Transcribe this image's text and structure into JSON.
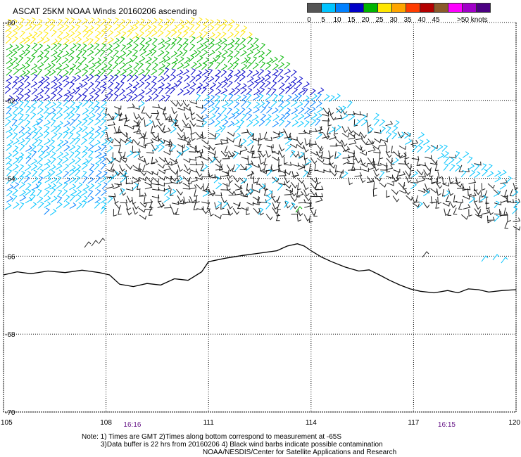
{
  "title": "ASCAT 25KM NOAA Winds 20160206 ascending",
  "legend": {
    "colors": [
      "#555555",
      "#00c4ff",
      "#0080ff",
      "#0000c8",
      "#00b400",
      "#ffe600",
      "#ffa500",
      "#ff3c00",
      "#b40000",
      "#8b5a2b",
      "#ff00ff",
      "#a000c8",
      "#4b0082"
    ],
    "labels": [
      {
        "text": "0",
        "after": 0
      },
      {
        "text": "5",
        "after": 1
      },
      {
        "text": "10",
        "after": 2
      },
      {
        "text": "15",
        "after": 3
      },
      {
        "text": "20",
        "after": 4
      },
      {
        "text": "25",
        "after": 5
      },
      {
        "text": "30",
        "after": 6
      },
      {
        "text": "35",
        "after": 7
      },
      {
        "text": "40",
        "after": 8
      },
      {
        "text": "45",
        "after": 9
      },
      {
        "text": ">50 knots",
        "after": 11
      }
    ]
  },
  "axes": {
    "lon_min": 105,
    "lon_max": 120,
    "lat_min": -70,
    "lat_max": -60,
    "lon_ticks": [
      {
        "value": 105,
        "label": "105"
      },
      {
        "value": 108,
        "label": "108"
      },
      {
        "value": 111,
        "label": "111"
      },
      {
        "value": 114,
        "label": "114"
      },
      {
        "value": 117,
        "label": "117"
      },
      {
        "value": 120,
        "label": "120"
      }
    ],
    "lat_ticks": [
      {
        "value": -60,
        "label": "-60"
      },
      {
        "value": -62,
        "label": "-62"
      },
      {
        "value": -64,
        "label": "-64"
      },
      {
        "value": -66,
        "label": "-66"
      },
      {
        "value": -68,
        "label": "-68"
      },
      {
        "value": -70,
        "label": "-70"
      }
    ]
  },
  "times": [
    {
      "label": "16:16",
      "lon": 108.8
    },
    {
      "label": "16:15",
      "lon": 118.0
    }
  ],
  "coastline": [
    [
      105.0,
      -66.48
    ],
    [
      105.4,
      -66.4
    ],
    [
      105.8,
      -66.45
    ],
    [
      106.3,
      -66.38
    ],
    [
      106.8,
      -66.42
    ],
    [
      107.3,
      -66.36
    ],
    [
      107.8,
      -66.42
    ],
    [
      108.1,
      -66.48
    ],
    [
      108.4,
      -66.72
    ],
    [
      108.8,
      -66.78
    ],
    [
      109.2,
      -66.7
    ],
    [
      109.6,
      -66.74
    ],
    [
      110.0,
      -66.58
    ],
    [
      110.4,
      -66.62
    ],
    [
      110.8,
      -66.4
    ],
    [
      111.0,
      -66.14
    ],
    [
      111.5,
      -66.05
    ],
    [
      112.0,
      -65.98
    ],
    [
      112.5,
      -65.92
    ],
    [
      113.0,
      -65.86
    ],
    [
      113.3,
      -65.74
    ],
    [
      113.6,
      -65.68
    ],
    [
      113.8,
      -65.74
    ],
    [
      114.0,
      -65.86
    ],
    [
      114.3,
      -66.02
    ],
    [
      114.6,
      -66.14
    ],
    [
      115.0,
      -66.28
    ],
    [
      115.4,
      -66.38
    ],
    [
      115.7,
      -66.35
    ],
    [
      116.0,
      -66.48
    ],
    [
      116.3,
      -66.62
    ],
    [
      116.6,
      -66.74
    ],
    [
      116.9,
      -66.84
    ],
    [
      117.2,
      -66.9
    ],
    [
      117.6,
      -66.94
    ],
    [
      118.0,
      -66.88
    ],
    [
      118.3,
      -66.94
    ],
    [
      118.6,
      -66.84
    ],
    [
      118.9,
      -66.86
    ],
    [
      119.2,
      -66.92
    ],
    [
      119.6,
      -66.88
    ],
    [
      120.0,
      -66.86
    ]
  ],
  "notes": [
    "Note: 1) Times are GMT 2)Times along bottom correspond to measurement at -65S",
    "3)Data buffer is 22 hrs from 20160206 4) Black wind barbs indicate possible contamination",
    "NOAA/NESDIS/Center for Satellite Applications and Research"
  ]
}
